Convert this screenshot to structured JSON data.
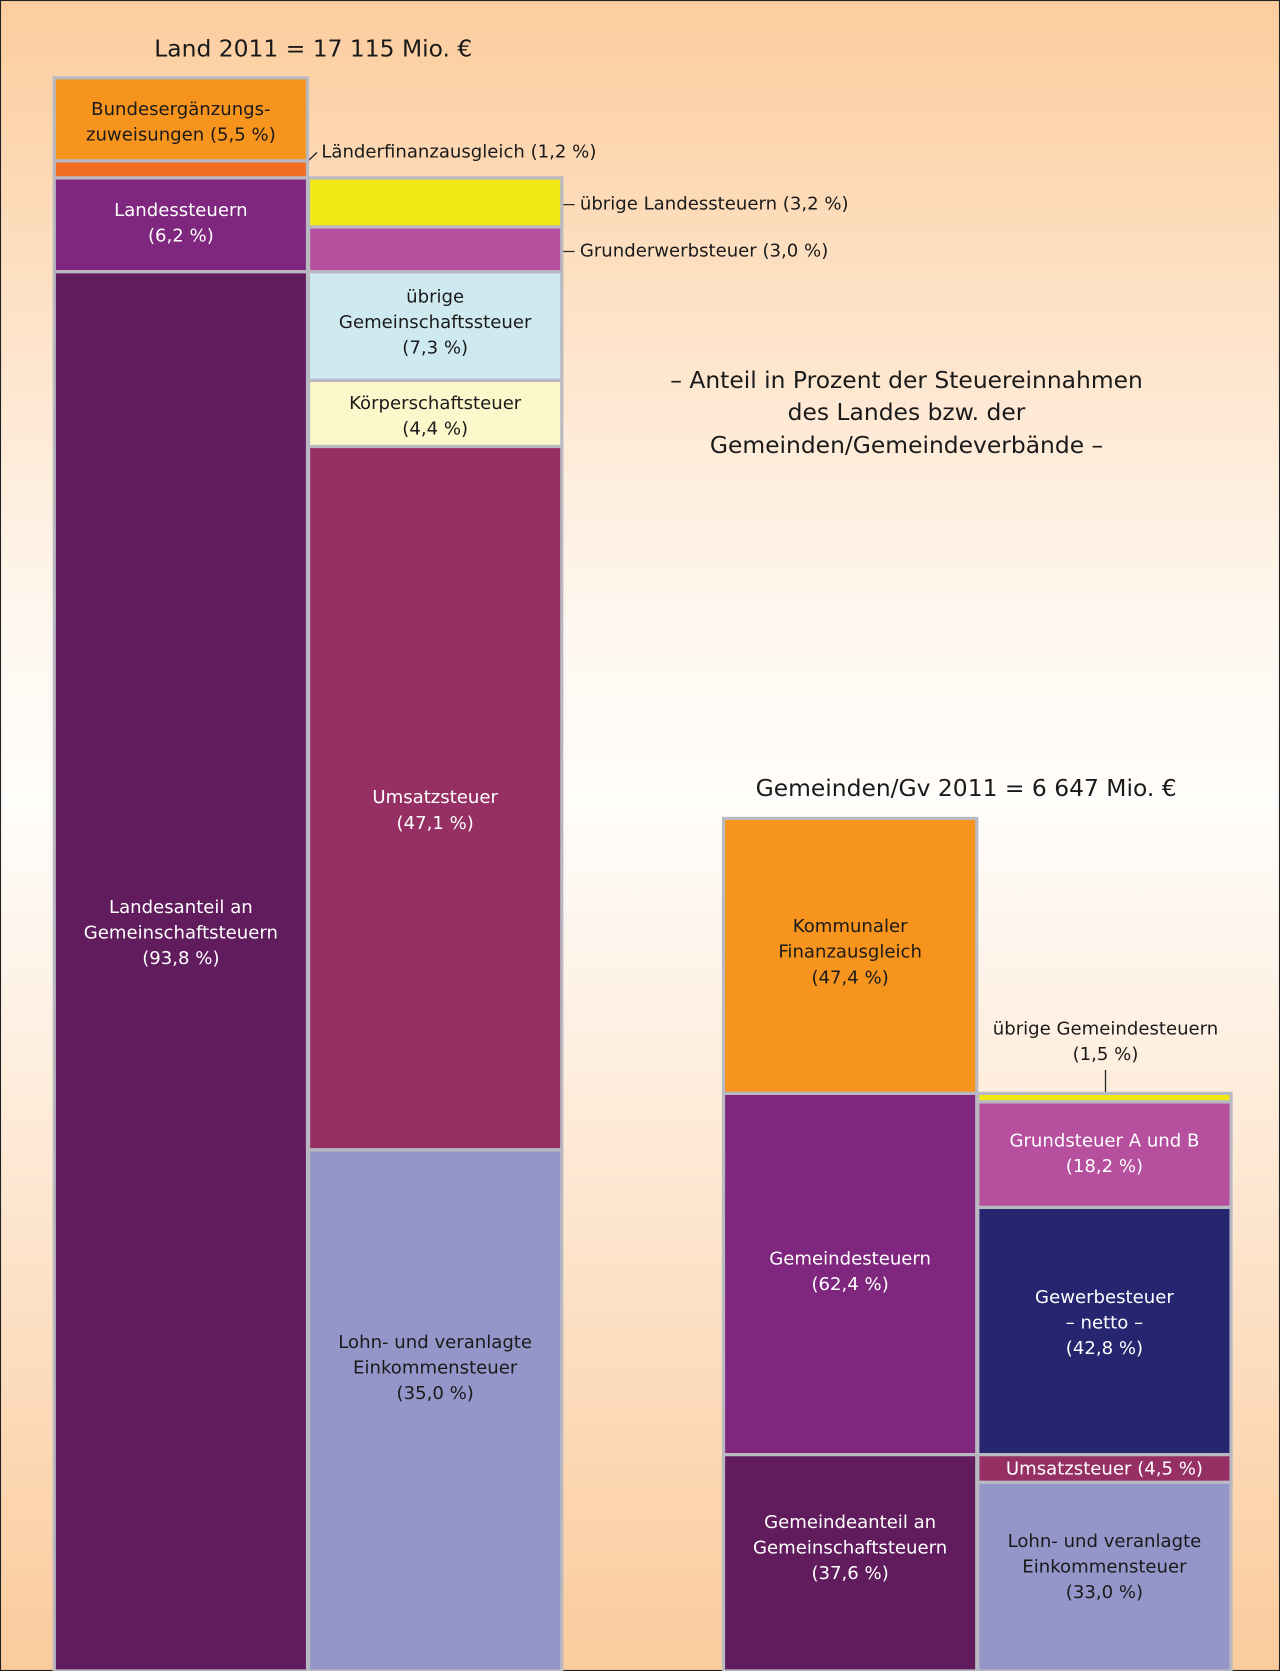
{
  "land": {
    "title": "Land 2011 = 17 115 Mio. €",
    "blocks": [
      {
        "lines": [
          "Bundesergänzungs-",
          "zuweisungen (5,5 %)"
        ]
      },
      {
        "lines": []
      },
      {
        "lines": [
          "Landessteuern",
          "(6,2 %)"
        ]
      },
      {
        "lines": [
          "Landesanteil an",
          "Gemeinschaftsteuern",
          "(93,8 %)"
        ]
      },
      {
        "lines": []
      },
      {
        "lines": []
      },
      {
        "lines": [
          "übrige",
          "Gemeinschaftssteuer",
          "(7,3 %)"
        ]
      },
      {
        "lines": [
          "Körperschaftsteuer",
          "(4,4 %)"
        ]
      },
      {
        "lines": [
          "Umsatzsteuer",
          "(47,1 %)"
        ]
      },
      {
        "lines": [
          "Lohn- und veranlagte",
          "Einkommensteuer",
          "(35,0 %)"
        ]
      }
    ],
    "callouts": [
      "Länderfinanzausgleich (1,2 %)",
      "übrige Landessteuern (3,2 %)",
      "Grunderwerbsteuer (3,0 %)"
    ]
  },
  "subtitle": {
    "lines": [
      "– Anteil in Prozent der Steuereinnahmen",
      "des Landes bzw. der",
      "Gemeinden/Gemeindeverbände –"
    ]
  },
  "gemeinden": {
    "title": "Gemeinden/Gv 2011 = 6 647 Mio. €",
    "blocks": [
      {
        "lines": [
          "Kommunaler",
          "Finanzausgleich",
          "(47,4 %)"
        ]
      },
      {
        "lines": [
          "Gemeindesteuern",
          "(62,4 %)"
        ]
      },
      {
        "lines": [
          "Gemeindeanteil an",
          "Gemeinschaftsteuern",
          "(37,6 %)"
        ]
      },
      {
        "lines": []
      },
      {
        "lines": [
          "Grundsteuer A und B",
          "(18,2 %)"
        ]
      },
      {
        "lines": [
          "Gewerbesteuer",
          "– netto –",
          "(42,8 %)"
        ]
      },
      {
        "lines": [
          "Umsatzsteuer (4,5 %)"
        ]
      },
      {
        "lines": [
          "Lohn- und veranlagte",
          "Einkommensteuer",
          "(33,0 %)"
        ]
      }
    ],
    "callouts": [
      "übrige Gemeindesteuern",
      "(1,5 %)"
    ]
  }
}
